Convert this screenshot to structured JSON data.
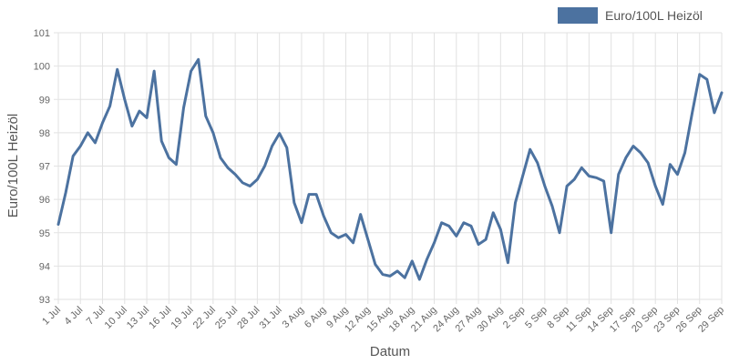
{
  "chart_data": {
    "type": "line",
    "xlabel": "Datum",
    "ylabel": "Euro/100L Heizöl",
    "ylim": [
      93,
      101
    ],
    "yticks": [
      93,
      94,
      95,
      96,
      97,
      98,
      99,
      100,
      101
    ],
    "xtick_labels": [
      "1 Jul",
      "4 Jul",
      "7 Jul",
      "10 Jul",
      "13 Jul",
      "16 Jul",
      "19 Jul",
      "22 Jul",
      "25 Jul",
      "28 Jul",
      "31 Jul",
      "3 Aug",
      "6 Aug",
      "9 Aug",
      "12 Aug",
      "15 Aug",
      "18 Aug",
      "21 Aug",
      "24 Aug",
      "27 Aug",
      "30 Aug",
      "2 Sep",
      "5 Sep",
      "8 Sep",
      "11 Sep",
      "14 Sep",
      "17 Sep",
      "20 Sep",
      "23 Sep",
      "26 Sep",
      "29 Sep"
    ],
    "grid": true,
    "legend_position": "top-right",
    "series": [
      {
        "name": "Euro/100L Heizöl",
        "color": "#4c72a0",
        "x": [
          "1 Jul",
          "2 Jul",
          "3 Jul",
          "4 Jul",
          "5 Jul",
          "6 Jul",
          "7 Jul",
          "8 Jul",
          "9 Jul",
          "10 Jul",
          "11 Jul",
          "12 Jul",
          "13 Jul",
          "14 Jul",
          "15 Jul",
          "16 Jul",
          "17 Jul",
          "18 Jul",
          "19 Jul",
          "20 Jul",
          "21 Jul",
          "22 Jul",
          "23 Jul",
          "24 Jul",
          "25 Jul",
          "26 Jul",
          "27 Jul",
          "28 Jul",
          "29 Jul",
          "30 Jul",
          "31 Jul",
          "1 Aug",
          "2 Aug",
          "3 Aug",
          "4 Aug",
          "5 Aug",
          "6 Aug",
          "7 Aug",
          "8 Aug",
          "9 Aug",
          "10 Aug",
          "11 Aug",
          "12 Aug",
          "13 Aug",
          "14 Aug",
          "15 Aug",
          "16 Aug",
          "17 Aug",
          "18 Aug",
          "19 Aug",
          "20 Aug",
          "21 Aug",
          "22 Aug",
          "23 Aug",
          "24 Aug",
          "25 Aug",
          "26 Aug",
          "27 Aug",
          "28 Aug",
          "29 Aug",
          "30 Aug",
          "31 Aug",
          "1 Sep",
          "2 Sep",
          "3 Sep",
          "4 Sep",
          "5 Sep",
          "6 Sep",
          "7 Sep",
          "8 Sep",
          "9 Sep",
          "10 Sep",
          "11 Sep",
          "12 Sep",
          "13 Sep",
          "14 Sep",
          "15 Sep",
          "16 Sep",
          "17 Sep",
          "18 Sep",
          "19 Sep",
          "20 Sep",
          "21 Sep",
          "22 Sep",
          "23 Sep",
          "24 Sep",
          "25 Sep",
          "26 Sep",
          "27 Sep",
          "28 Sep",
          "29 Sep"
        ],
        "values": [
          95.25,
          96.2,
          97.3,
          97.6,
          98.0,
          97.7,
          98.3,
          98.8,
          99.9,
          99.0,
          98.2,
          98.65,
          98.45,
          99.85,
          97.75,
          97.25,
          97.05,
          98.75,
          99.85,
          100.2,
          98.5,
          98.0,
          97.25,
          96.95,
          96.75,
          96.5,
          96.4,
          96.6,
          97.0,
          97.6,
          97.98,
          97.55,
          95.9,
          95.3,
          96.15,
          96.15,
          95.5,
          95.0,
          94.85,
          94.95,
          94.7,
          95.55,
          94.8,
          94.05,
          93.75,
          93.7,
          93.85,
          93.65,
          94.15,
          93.6,
          94.2,
          94.7,
          95.3,
          95.2,
          94.9,
          95.3,
          95.2,
          94.65,
          94.8,
          95.6,
          95.1,
          94.1,
          95.9,
          96.7,
          97.5,
          97.1,
          96.4,
          95.8,
          95.0,
          96.4,
          96.6,
          96.95,
          96.7,
          96.65,
          96.55,
          95.0,
          96.75,
          97.25,
          97.6,
          97.4,
          97.1,
          96.4,
          95.85,
          97.05,
          96.75,
          97.4,
          98.6,
          99.75,
          99.6,
          98.6,
          99.2
        ]
      }
    ]
  }
}
